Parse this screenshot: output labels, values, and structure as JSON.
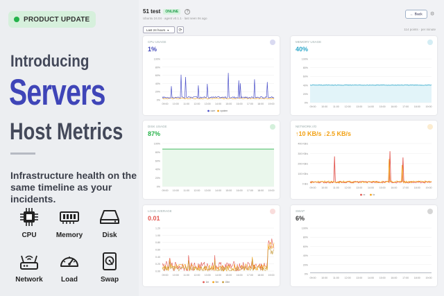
{
  "promo": {
    "badge": "PRODUCT UPDATE",
    "heading_intro": "Introducing",
    "heading_main": "Servers",
    "heading_sub": "Host Metrics",
    "subtitle": "Infrastructure health on the same timeline as your incidents.",
    "metrics": [
      {
        "label": "CPU",
        "icon": "cpu-icon"
      },
      {
        "label": "Memory",
        "icon": "memory-icon"
      },
      {
        "label": "Disk",
        "icon": "disk-icon"
      },
      {
        "label": "Network",
        "icon": "router-icon"
      },
      {
        "label": "Load",
        "icon": "gauge-icon"
      },
      {
        "label": "Swap",
        "icon": "swap-icon"
      }
    ]
  },
  "dashboard": {
    "host_name": "51 test",
    "status": "ONLINE",
    "host_meta": "Ubuntu 24.04 · agent v0.1.1 · last seen 9s ago",
    "back_label": "← Back",
    "range_label": "Last 24 hours",
    "points_label": "114 points · per minute",
    "time_ticks": [
      "09:00",
      "10:00",
      "11:00",
      "12:00",
      "13:00",
      "14:00",
      "15:00",
      "16:00",
      "17:00",
      "18:00",
      "19:00"
    ],
    "cards": [
      {
        "title": "CPU USAGE",
        "value": "1%",
        "color": "#3f45b8",
        "ticks": [
          "100%",
          "80%",
          "60%",
          "40%",
          "20%",
          "0%"
        ],
        "legend": [
          "user",
          "system"
        ]
      },
      {
        "title": "MEMORY USAGE",
        "value": "40%",
        "color": "#2aa6c9",
        "ticks": [
          "100%",
          "80%",
          "60%",
          "40%",
          "20%",
          "0%"
        ],
        "legend": []
      },
      {
        "title": "DISK USAGE",
        "value": "87%",
        "color": "#27b24a",
        "ticks": [
          "100%",
          "80%",
          "60%",
          "40%",
          "20%",
          "0%"
        ],
        "legend": []
      },
      {
        "title": "NETWORK I/O",
        "value": "↑10 KB/s ↓2.5 KB/s",
        "color": "#f2a114",
        "ticks": [
          "400 KB/s",
          "300 KB/s",
          "200 KB/s",
          "100 KB/s",
          "0 B/s"
        ],
        "legend": [
          "rx",
          "tx"
        ]
      },
      {
        "title": "LOAD AVERAGE",
        "value": "0.01",
        "color": "#e2554f",
        "ticks": [
          "1.20",
          "1.00",
          "0.80",
          "0.60",
          "0.40",
          "0.20",
          "0.00"
        ],
        "legend": [
          "1m",
          "5m",
          "15m"
        ]
      },
      {
        "title": "SWAP",
        "value": "6%",
        "color": "#333333",
        "ticks": [
          "100%",
          "80%",
          "60%",
          "40%",
          "20%",
          "0%"
        ],
        "legend": []
      }
    ]
  }
}
